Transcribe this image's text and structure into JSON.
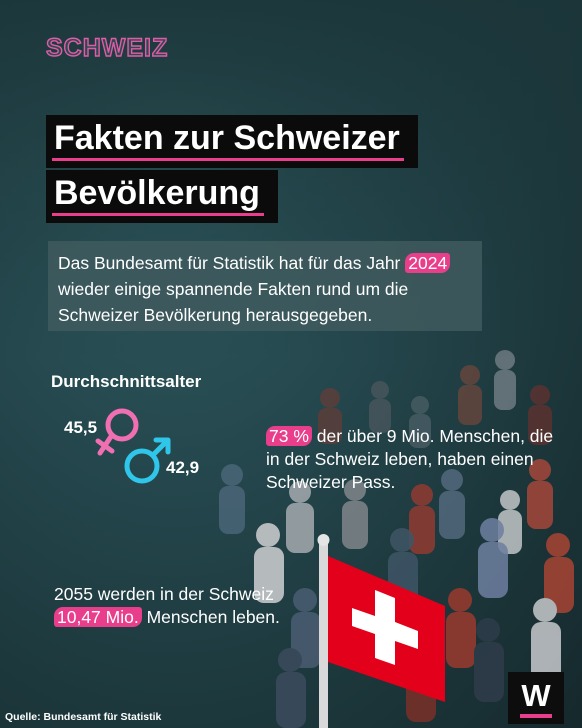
{
  "brand": "SCHWEIZ",
  "title_line1": "Fakten zur Schweizer",
  "title_line2": "Bevölkerung",
  "intro": {
    "before": "Das Bundesamt für Statistik hat für das Jahr",
    "year": "2024",
    "after": "wieder einige spannende Fakten rund um die Schweizer Bevölkerung herausgegeben."
  },
  "age": {
    "title": "Durchschnittsalter",
    "female": "45,5",
    "male": "42,9",
    "female_icon": "female-symbol",
    "male_icon": "male-symbol"
  },
  "fact_passport": {
    "highlight": "73 %",
    "text": "der über 9 Mio. Menschen, die in der Schweiz leben, haben einen Schweizer Pass."
  },
  "fact_2055": {
    "before": "2055 werden in der Schweiz",
    "highlight": "10,47 Mio.",
    "after": "Menschen leben."
  },
  "source": "Quelle: Bundesamt für Statistik",
  "logo_letter": "W",
  "colors": {
    "accent_pink": "#e83e8c",
    "male_blue": "#2fc6ea",
    "female_pink": "#ef6fb2",
    "flag_red": "#e3001b",
    "background_teal": "#24474d"
  }
}
